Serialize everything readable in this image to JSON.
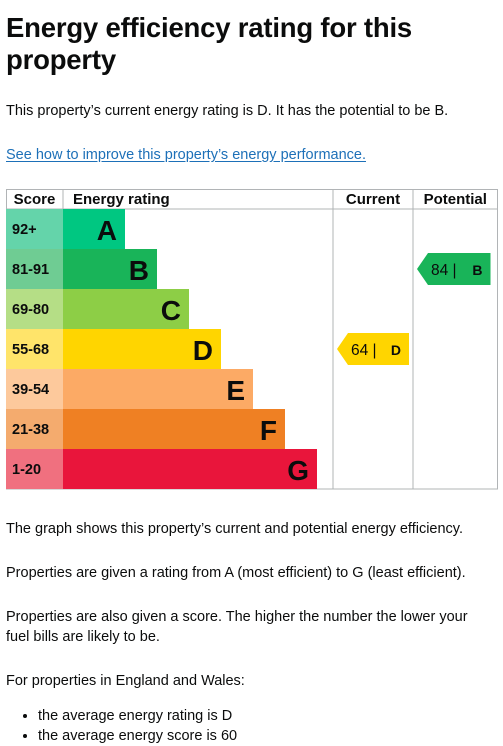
{
  "page": {
    "title": "Energy efficiency rating for this property",
    "intro": "This property’s current energy rating is D. It has the potential to be B.",
    "improve_link": "See how to improve this property’s energy performance.",
    "para_graph": "The graph shows this property’s current and potential energy efficiency.",
    "para_ratings": "Properties are given a rating from A (most efficient) to G (least efficient).",
    "para_score": "Properties are also given a score. The higher the number the lower your fuel bills are likely to be.",
    "para_region": "For properties in England and Wales:",
    "bullets": [
      "the average energy rating is D",
      "the average energy score is 60"
    ]
  },
  "chart_data": {
    "type": "table",
    "headers": {
      "score": "Score",
      "rating": "Energy rating",
      "current": "Current",
      "potential": "Potential"
    },
    "bands": [
      {
        "score": "92+",
        "letter": "A",
        "color": "#00c781",
        "score_bg": "#64d4aa"
      },
      {
        "score": "81-91",
        "letter": "B",
        "color": "#19b459",
        "score_bg": "#6fcc93"
      },
      {
        "score": "69-80",
        "letter": "C",
        "color": "#8dce46",
        "score_bg": "#b5de86"
      },
      {
        "score": "55-68",
        "letter": "D",
        "color": "#ffd500",
        "score_bg": "#ffe46a"
      },
      {
        "score": "39-54",
        "letter": "E",
        "color": "#fcaa65",
        "score_bg": "#fdc99c"
      },
      {
        "score": "21-38",
        "letter": "F",
        "color": "#ef8023",
        "score_bg": "#f4ab6e"
      },
      {
        "score": "1-20",
        "letter": "G",
        "color": "#e9153b",
        "score_bg": "#f0707f"
      }
    ],
    "current": {
      "value": 64,
      "letter": "D",
      "label": "64 |",
      "color": "#ffd500"
    },
    "potential": {
      "value": 84,
      "letter": "B",
      "label": "84 |",
      "color": "#19b459"
    }
  }
}
